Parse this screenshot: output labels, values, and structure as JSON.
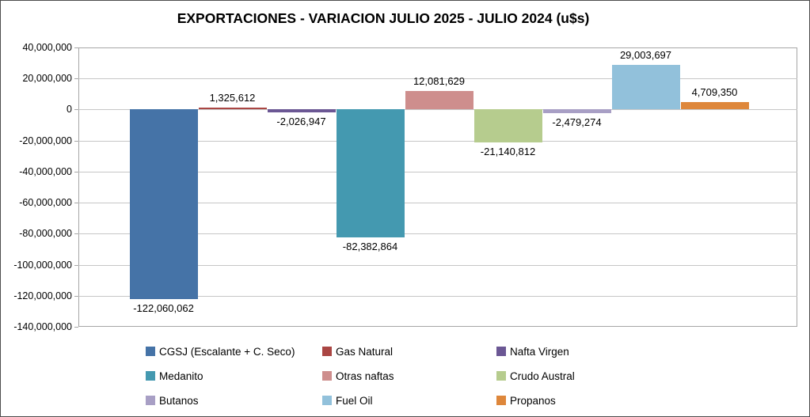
{
  "chart_data": {
    "type": "bar",
    "title": "EXPORTACIONES - VARIACION JULIO 2025 - JULIO 2024 (u$s)",
    "categories": [
      "CGSJ (Escalante + C. Seco)",
      "Gas Natural",
      "Nafta Virgen",
      "Medanito",
      "Otras naftas",
      "Crudo Austral",
      "Butanos",
      "Fuel Oil",
      "Propanos"
    ],
    "values": [
      -122060062,
      1325612,
      -2026947,
      -82382864,
      12081629,
      -21140812,
      -2479274,
      29003697,
      4709350
    ],
    "value_labels": [
      "-122,060,062",
      "1,325,612",
      "-2,026,947",
      "-82,382,864",
      "12,081,629",
      "-21,140,812",
      "-2,479,274",
      "29,003,697",
      "4,709,350"
    ],
    "colors": [
      "#4573A7",
      "#AA4643",
      "#6B5794",
      "#4499B0",
      "#CE8E8D",
      "#B6CC8E",
      "#A89FC5",
      "#92C1DB",
      "#DE873B"
    ],
    "xlabel": "",
    "ylabel": "",
    "ylim": [
      -140000000,
      40000000
    ],
    "ytick_step": 20000000,
    "ytick_labels": [
      "40,000,000",
      "20,000,000",
      "0",
      "-20,000,000",
      "-40,000,000",
      "-60,000,000",
      "-80,000,000",
      "-100,000,000",
      "-120,000,000",
      "-140,000,000"
    ],
    "grid": true,
    "legend_position": "bottom",
    "legend_columns": 3
  },
  "style_colors": {
    "grid": "#c6c6c6",
    "plot_border": "#a6a6a6",
    "outer_border": "#4d4d4d",
    "text": "#000000"
  }
}
